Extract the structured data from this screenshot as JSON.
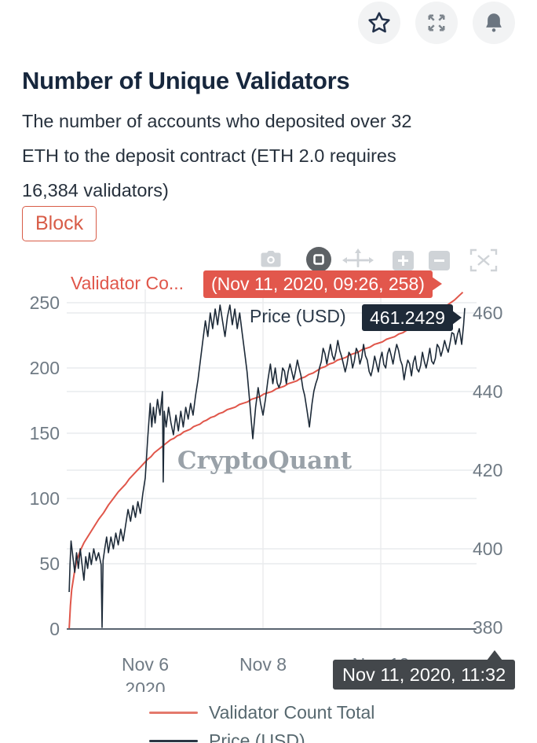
{
  "header": {
    "title": "Number of Unique Validators",
    "description_lines": [
      "The number of accounts who deposited over 32",
      "ETH to the deposit contract (ETH 2.0 requires",
      "16,384 validators)"
    ],
    "tag_label": "Block",
    "action_icons": [
      "star-icon",
      "fullscreen-icon",
      "bell-icon"
    ]
  },
  "toolbar": {
    "icons": [
      "camera-icon",
      "zoom-box-icon",
      "pan-icon",
      "zoom-in-icon",
      "zoom-out-icon",
      "autoscale-icon"
    ],
    "active_icon": "zoom-box-icon"
  },
  "hover": {
    "series1_label": "Validator Co...",
    "series1_value": "(Nov 11, 2020, 09:26, 258)",
    "series2_label": "Price (USD)",
    "series2_value": "461.2429",
    "x_value": "Nov 11, 2020, 11:32"
  },
  "colors": {
    "accent_red": "#e2574c",
    "dark_navy": "#1e2a38",
    "x_tooltip_bg": "#43474b",
    "tick_text": "#6f7a84",
    "grid": "#e9ebed",
    "axis_line": "#5a6470",
    "watermark": "#8e979f",
    "chip": "#d85c47",
    "legend_text": "#57686f",
    "legend_red_swatch": "#e4796c",
    "legend_dark_swatch": "#2b3744"
  },
  "chart_data": {
    "type": "line",
    "watermark": "CryptoQuant",
    "grid": true,
    "legend_position": "bottom",
    "x_axis": {
      "ticks": [
        "Nov 6",
        "Nov 8",
        "Nov 10"
      ],
      "year_label": "2020",
      "range_days": [
        "Nov 4 2020 17:00",
        "Nov 11 2020 11:32"
      ]
    },
    "y_axis_left": {
      "ticks": [
        0,
        50,
        100,
        150,
        200,
        250
      ],
      "range": [
        0,
        265
      ]
    },
    "y_axis_right": {
      "ticks": [
        380,
        400,
        420,
        440,
        460
      ],
      "range": [
        380,
        464
      ]
    },
    "series": [
      {
        "name": "Validator Count Total",
        "axis": "left",
        "color": "#e0564a",
        "points": [
          [
            "11-04 17:00",
            0
          ],
          [
            "11-04 17:30",
            18
          ],
          [
            "11-04 18:00",
            30
          ],
          [
            "11-04 19:00",
            42
          ],
          [
            "11-04 20:00",
            52
          ],
          [
            "11-04 21:30",
            60
          ],
          [
            "11-04 23:00",
            66
          ],
          [
            "11-05 01:00",
            72
          ],
          [
            "11-05 03:00",
            78
          ],
          [
            "11-05 05:00",
            84
          ],
          [
            "11-05 07:00",
            89
          ],
          [
            "11-05 09:00",
            95
          ],
          [
            "11-05 11:00",
            100
          ],
          [
            "11-05 13:00",
            105
          ],
          [
            "11-05 16:00",
            111
          ],
          [
            "11-05 19:00",
            118
          ],
          [
            "11-05 22:00",
            124
          ],
          [
            "11-06 01:00",
            130
          ],
          [
            "11-06 05:00",
            137
          ],
          [
            "11-06 09:00",
            143
          ],
          [
            "11-06 13:00",
            148
          ],
          [
            "11-06 17:00",
            152
          ],
          [
            "11-06 21:00",
            156
          ],
          [
            "11-07 01:00",
            160
          ],
          [
            "11-07 06:00",
            165
          ],
          [
            "11-07 11:00",
            169
          ],
          [
            "11-07 16:00",
            173
          ],
          [
            "11-07 21:00",
            177
          ],
          [
            "11-08 02:00",
            181
          ],
          [
            "11-08 07:00",
            185
          ],
          [
            "11-08 12:00",
            189
          ],
          [
            "11-08 17:00",
            193
          ],
          [
            "11-08 22:00",
            198
          ],
          [
            "11-09 03:00",
            203
          ],
          [
            "11-09 08:00",
            207
          ],
          [
            "11-09 13:00",
            211
          ],
          [
            "11-09 18:00",
            215
          ],
          [
            "11-09 23:00",
            219
          ],
          [
            "11-10 04:00",
            223
          ],
          [
            "11-10 09:00",
            227
          ],
          [
            "11-10 14:00",
            232
          ],
          [
            "11-10 19:00",
            237
          ],
          [
            "11-11 00:00",
            243
          ],
          [
            "11-11 03:00",
            248
          ],
          [
            "11-11 06:00",
            252
          ],
          [
            "11-11 09:26",
            258
          ]
        ]
      },
      {
        "name": "Price (USD)",
        "axis": "right",
        "color": "#1d2a38",
        "points": [
          [
            "11-04 17:00",
            389
          ],
          [
            "11-04 17:20",
            396
          ],
          [
            "11-04 17:45",
            402
          ],
          [
            "11-04 18:30",
            398
          ],
          [
            "11-04 19:15",
            394
          ],
          [
            "11-04 20:00",
            399
          ],
          [
            "11-04 20:45",
            395
          ],
          [
            "11-04 21:30",
            400
          ],
          [
            "11-04 22:15",
            396
          ],
          [
            "11-04 23:00",
            392
          ],
          [
            "11-04 23:45",
            398
          ],
          [
            "11-05 00:30",
            395
          ],
          [
            "11-05 01:15",
            399
          ],
          [
            "11-05 02:00",
            396
          ],
          [
            "11-05 03:00",
            400
          ],
          [
            "11-05 04:00",
            397
          ],
          [
            "11-05 05:00",
            399
          ],
          [
            "11-05 06:00",
            396
          ],
          [
            "11-05 06:24",
            380
          ],
          [
            "11-05 06:48",
            397
          ],
          [
            "11-05 07:30",
            400
          ],
          [
            "11-05 08:15",
            403
          ],
          [
            "11-05 09:00",
            399
          ],
          [
            "11-05 10:00",
            403
          ],
          [
            "11-05 11:00",
            400
          ],
          [
            "11-05 12:00",
            404
          ],
          [
            "11-05 13:00",
            401
          ],
          [
            "11-05 14:00",
            405
          ],
          [
            "11-05 15:00",
            402
          ],
          [
            "11-05 16:00",
            406
          ],
          [
            "11-05 17:00",
            410
          ],
          [
            "11-05 18:00",
            407
          ],
          [
            "11-05 19:00",
            411
          ],
          [
            "11-05 20:00",
            408
          ],
          [
            "11-05 21:00",
            412
          ],
          [
            "11-05 22:00",
            409
          ],
          [
            "11-05 23:00",
            414
          ],
          [
            "11-06 00:00",
            418
          ],
          [
            "11-06 01:00",
            428
          ],
          [
            "11-06 02:00",
            437
          ],
          [
            "11-06 02:40",
            431
          ],
          [
            "11-06 03:20",
            436
          ],
          [
            "11-06 04:00",
            432
          ],
          [
            "11-06 05:00",
            438
          ],
          [
            "11-06 06:00",
            434
          ],
          [
            "11-06 07:00",
            440
          ],
          [
            "11-06 07:20",
            417
          ],
          [
            "11-06 07:45",
            435
          ],
          [
            "11-06 08:30",
            431
          ],
          [
            "11-06 09:30",
            436
          ],
          [
            "11-06 10:30",
            432
          ],
          [
            "11-06 11:30",
            429
          ],
          [
            "11-06 12:30",
            434
          ],
          [
            "11-06 13:30",
            430
          ],
          [
            "11-06 14:30",
            435
          ],
          [
            "11-06 15:30",
            431
          ],
          [
            "11-06 16:30",
            436
          ],
          [
            "11-06 17:30",
            433
          ],
          [
            "11-06 18:30",
            437
          ],
          [
            "11-06 19:30",
            434
          ],
          [
            "11-06 20:30",
            439
          ],
          [
            "11-06 21:30",
            443
          ],
          [
            "11-06 22:30",
            448
          ],
          [
            "11-06 23:30",
            453
          ],
          [
            "11-07 00:30",
            458
          ],
          [
            "11-07 01:30",
            454
          ],
          [
            "11-07 02:30",
            460
          ],
          [
            "11-07 03:30",
            456
          ],
          [
            "11-07 04:30",
            461
          ],
          [
            "11-07 05:30",
            457
          ],
          [
            "11-07 06:30",
            462
          ],
          [
            "11-07 07:30",
            458
          ],
          [
            "11-07 08:30",
            454
          ],
          [
            "11-07 09:30",
            459
          ],
          [
            "11-07 10:30",
            462
          ],
          [
            "11-07 11:30",
            457
          ],
          [
            "11-07 12:30",
            461
          ],
          [
            "11-07 13:30",
            456
          ],
          [
            "11-07 14:30",
            460
          ],
          [
            "11-07 15:30",
            455
          ],
          [
            "11-07 16:30",
            450
          ],
          [
            "11-07 17:30",
            445
          ],
          [
            "11-07 18:30",
            438
          ],
          [
            "11-07 19:50",
            428
          ],
          [
            "11-07 21:00",
            436
          ],
          [
            "11-07 22:00",
            441
          ],
          [
            "11-07 23:00",
            437
          ],
          [
            "11-08 00:00",
            434
          ],
          [
            "11-08 01:00",
            438
          ],
          [
            "11-08 02:00",
            443
          ],
          [
            "11-08 03:00",
            447
          ],
          [
            "11-08 04:00",
            442
          ],
          [
            "11-08 05:00",
            446
          ],
          [
            "11-08 06:30",
            441
          ],
          [
            "11-08 08:00",
            446
          ],
          [
            "11-08 09:30",
            442
          ],
          [
            "11-08 11:00",
            447
          ],
          [
            "11-08 12:30",
            443
          ],
          [
            "11-08 14:00",
            448
          ],
          [
            "11-08 15:30",
            444
          ],
          [
            "11-08 17:00",
            439
          ],
          [
            "11-08 18:55",
            431
          ],
          [
            "11-08 20:00",
            437
          ],
          [
            "11-08 21:30",
            442
          ],
          [
            "11-08 23:00",
            446
          ],
          [
            "11-09 00:30",
            451
          ],
          [
            "11-09 02:00",
            447
          ],
          [
            "11-09 03:30",
            452
          ],
          [
            "11-09 05:00",
            448
          ],
          [
            "11-09 06:30",
            453
          ],
          [
            "11-09 08:00",
            449
          ],
          [
            "11-09 09:30",
            445
          ],
          [
            "11-09 11:00",
            450
          ],
          [
            "11-09 12:30",
            446
          ],
          [
            "11-09 14:00",
            451
          ],
          [
            "11-09 15:30",
            447
          ],
          [
            "11-09 17:00",
            452
          ],
          [
            "11-09 18:30",
            448
          ],
          [
            "11-09 20:00",
            444
          ],
          [
            "11-09 21:30",
            449
          ],
          [
            "11-09 23:00",
            445
          ],
          [
            "11-10 00:30",
            450
          ],
          [
            "11-10 02:00",
            446
          ],
          [
            "11-10 03:30",
            451
          ],
          [
            "11-10 05:00",
            447
          ],
          [
            "11-10 06:30",
            452
          ],
          [
            "11-10 08:00",
            448
          ],
          [
            "11-10 09:30",
            443
          ],
          [
            "11-10 11:00",
            448
          ],
          [
            "11-10 12:30",
            444
          ],
          [
            "11-10 14:00",
            449
          ],
          [
            "11-10 15:30",
            445
          ],
          [
            "11-10 17:00",
            450
          ],
          [
            "11-10 18:30",
            446
          ],
          [
            "11-10 20:00",
            451
          ],
          [
            "11-10 21:30",
            447
          ],
          [
            "11-10 23:00",
            452
          ],
          [
            "11-11 00:30",
            449
          ],
          [
            "11-11 02:00",
            453
          ],
          [
            "11-11 03:30",
            450
          ],
          [
            "11-11 05:00",
            455
          ],
          [
            "11-11 06:30",
            452
          ],
          [
            "11-11 08:00",
            456
          ],
          [
            "11-11 09:00",
            452
          ],
          [
            "11-11 09:45",
            457
          ],
          [
            "11-11 10:14",
            461.24
          ]
        ]
      }
    ]
  }
}
